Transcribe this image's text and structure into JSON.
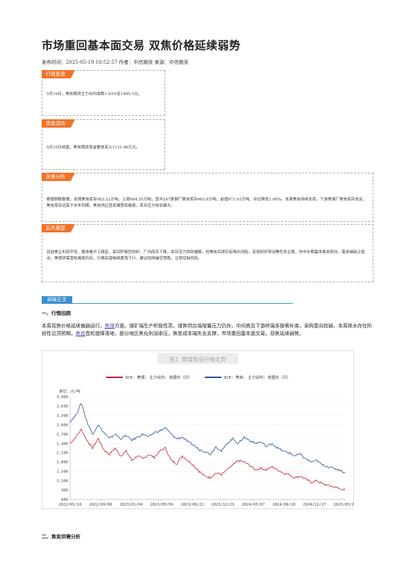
{
  "article": {
    "title": "市场重回基本面交易 双焦价格延续弱势",
    "meta": "发布时间：2025-05-19 10:52:57 作者：中信期货 来源：中信期货"
  },
  "boxes": {
    "market": {
      "tag": "行情复盘",
      "text": "5月16日，焦炭期货主力合约收跌1.93%至1445.5元。"
    },
    "fund": {
      "tag": "资金流向",
      "text": "5月16日收盘，焦炭期货资金整体流入1121.96万元。"
    },
    "background": {
      "tag": "背景分析",
      "text": "根据钢联数据，本周焦炭库存983.22万吨，上周994.55万吨，其中247家钢厂焦炭库存663.8万吨，前值671.03万吨，环比降低1.08%。本周焦炭持续去库，下游焦钢厂焦炭库存充足，焦炭库存远高于去年同期，焦炭供应显现偏宽松格局，库存压力依旧偏大。"
    },
    "outlook": {
      "tag": "后市展望",
      "text": "目前焦企利润不佳，整体看开工稳定，家目积极性较好，厂内库存下降，库存压力得到缓解，但焦炭后续仍有降价风险，宏观利好带动黑色系企稳，但中长期基本面未转向，需求端缺乏驱动，焦煤供需宽松格局仍存，行情有望继续震荡下行，建议短线操空思路，注意控制风险。"
    }
  },
  "report": {
    "tag": "研报正文",
    "section1_title": "一、行情回顾",
    "p_part1": "本周双焦价格延续偏弱运行，",
    "p_kw1": "焦煤",
    "p_part2": "方面，煤矿端生产积极性高，煤焦供应端增量压力仍存，中间商及下游终端多按需补库，采购意向较弱，本周铁水存在阶段性见顶预期，",
    "p_kw2": "焦炭",
    "p_part3": "首轮提降落地，部分地区焦化利润承压，焦炭成本端失去支撑，市场重回基本面交易，双焦延续弱势。",
    "section2_title": "二、焦炭供需分析"
  },
  "colors": {
    "coking_coal": "#c0192b",
    "coke": "#1f4e8f",
    "tag": "#f0732a",
    "report_tag": "#3a8fd0"
  },
  "chart_data": {
    "type": "line",
    "title": "图1 焦煤焦炭行情走势",
    "unit_label": "单位：元/吨",
    "ylim": [
      600,
      3900
    ],
    "yticks": [
      600,
      900,
      1200,
      1500,
      1800,
      2100,
      2400,
      2700,
      3000,
      3300,
      3600,
      3900
    ],
    "ytick_labels": [
      "600",
      "900",
      "1,200",
      "1,500",
      "1,800",
      "2,100",
      "2,400",
      "2,700",
      "3,000",
      "3,300",
      "3,600",
      "3,900"
    ],
    "xticks": [
      "2022/05/16",
      "2022/09/06",
      "2023/01/04",
      "2023/05/09",
      "2023/08/21",
      "2023/12/29",
      "2024/05/07",
      "2024/08/28",
      "2024/12/27",
      "2025/05/15"
    ],
    "series": [
      {
        "name": "DCE: 焦煤: 主力合约: 收盘价（日）",
        "color": "#c0192b",
        "values": [
          2400,
          2600,
          2850,
          2500,
          2250,
          2550,
          2200,
          2050,
          2250,
          2000,
          2150,
          1850,
          2000,
          1900,
          2050,
          1950,
          2150,
          2250,
          1850,
          1750,
          2000,
          1850,
          1700,
          1500,
          1350,
          1300,
          1450,
          1400,
          1550,
          1700,
          1850,
          1800,
          1700,
          1550,
          1600,
          1550,
          1650,
          1550,
          1450,
          1400,
          1300,
          1350,
          1250,
          1150,
          1200,
          1100,
          1050,
          1000,
          950,
          900
        ]
      },
      {
        "name": "DCE: 焦炭: 主力合约: 收盘价（日）",
        "color": "#1f4e8f",
        "values": [
          3100,
          3300,
          3700,
          3100,
          2700,
          3000,
          2750,
          2550,
          2700,
          2550,
          2650,
          2500,
          2600,
          2700,
          2600,
          2750,
          2800,
          2900,
          2700,
          2550,
          2600,
          2450,
          2350,
          2200,
          2150,
          2050,
          2300,
          2150,
          2400,
          2550,
          2400,
          2600,
          2500,
          2400,
          2450,
          2300,
          2400,
          2250,
          2150,
          2100,
          2000,
          2050,
          1900,
          1800,
          1850,
          1700,
          1650,
          1600,
          1550,
          1450
        ]
      }
    ]
  }
}
